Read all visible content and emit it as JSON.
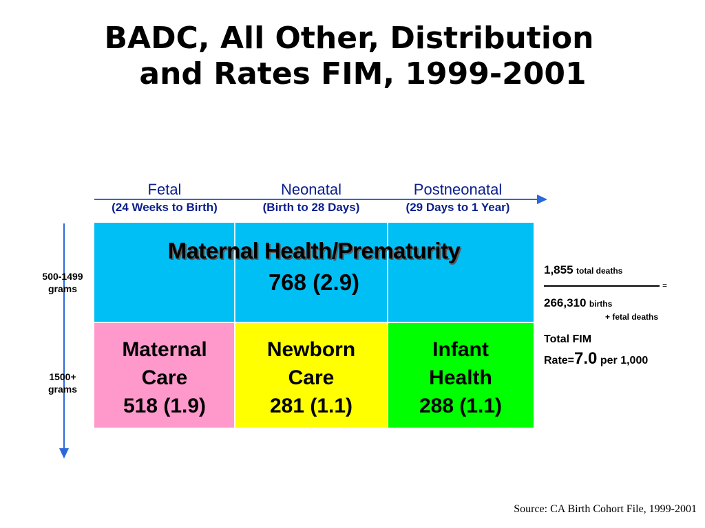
{
  "title": {
    "line1": "BADC, All Other, Distribution",
    "line2": "and Rates FIM, 1999-2001"
  },
  "periods": [
    {
      "name": "Fetal",
      "range": "(24 Weeks to Birth)"
    },
    {
      "name": "Neonatal",
      "range": "(Birth to 28 Days)"
    },
    {
      "name": "Postneonatal",
      "range": "(29 Days to 1 Year)"
    }
  ],
  "weight_groups": [
    {
      "line1": "500-1499",
      "line2": "grams"
    },
    {
      "line1": "1500+",
      "line2": "grams"
    }
  ],
  "maternal_health": {
    "label": "Maternal Health/Prematurity",
    "value": "768 (2.9)"
  },
  "bottom_cells": [
    {
      "line1": "Maternal",
      "line2": "Care",
      "value": "518 (1.9)",
      "color": "#ff99cc"
    },
    {
      "line1": "Newborn",
      "line2": "Care",
      "value": "281 (1.1)",
      "color": "#ffff00"
    },
    {
      "line1": "Infant",
      "line2": "Health",
      "value": "288 (1.1)",
      "color": "#00ff00"
    }
  ],
  "colors": {
    "maternal_health": "#00bff5",
    "arrows": "#2b68d8",
    "header_text": "#0a1e8c"
  },
  "rate": {
    "deaths_value": "1,855",
    "deaths_label": "total deaths",
    "equals": "=",
    "births_value": "266,310",
    "births_label": "births",
    "births_label2": "+ fetal deaths",
    "total_label": "Total FIM",
    "rate_prefix": "Rate=",
    "rate_value": "7.0",
    "rate_suffix": "per 1,000"
  },
  "source": "Source: CA Birth Cohort File, 1999-2001"
}
